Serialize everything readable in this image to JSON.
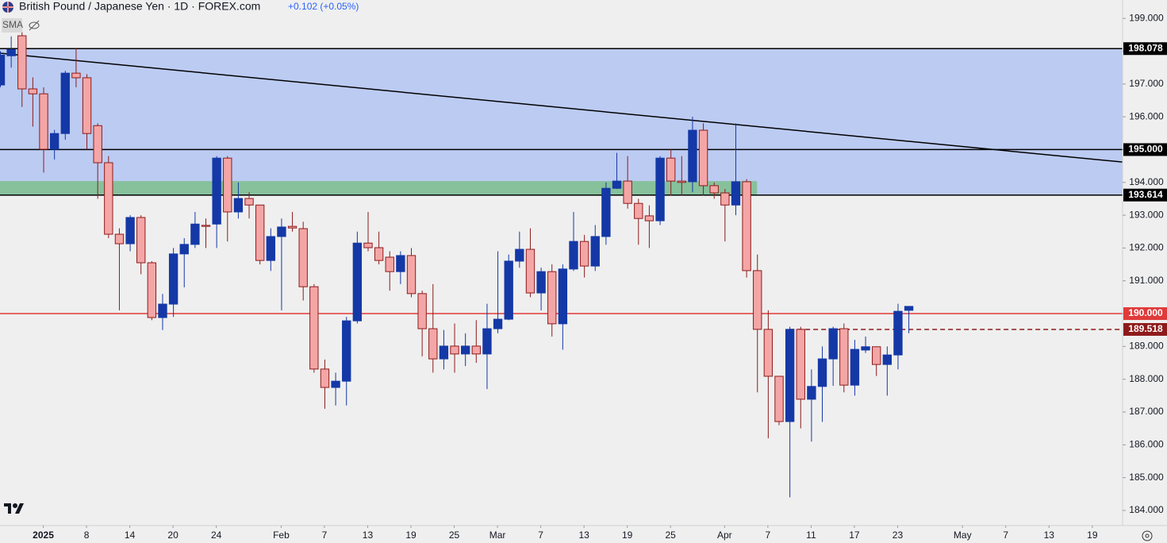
{
  "chart_data": {
    "type": "candlestick",
    "title": "British Pound / Japanese Yen · 1D · FOREX.com",
    "change": "+0.102 (+0.05%)",
    "indicator": "SMA",
    "up_color": "#1438a6",
    "down_color": "#f4a6a6",
    "down_edge": "#8e1b1b",
    "ylim": [
      183.54,
      199.56
    ],
    "xlim": [
      0,
      103.8
    ],
    "yticks": [
      {
        "value": 184,
        "label": "184.000"
      },
      {
        "value": 185,
        "label": "185.000"
      },
      {
        "value": 186,
        "label": "186.000"
      },
      {
        "value": 187,
        "label": "187.000"
      },
      {
        "value": 188,
        "label": "188.000"
      },
      {
        "value": 189,
        "label": "189.000"
      },
      {
        "value": 190,
        "label": "190.000"
      },
      {
        "value": 191,
        "label": "191.000"
      },
      {
        "value": 192,
        "label": "192.000"
      },
      {
        "value": 193,
        "label": "193.000"
      },
      {
        "value": 194,
        "label": "194.000"
      },
      {
        "value": 195,
        "label": "195.000"
      },
      {
        "value": 196,
        "label": "196.000"
      },
      {
        "value": 197,
        "label": "197.000"
      },
      {
        "value": 198,
        "label": "198.000"
      },
      {
        "value": 199,
        "label": "199.000"
      }
    ],
    "xticks": [
      {
        "value": 4,
        "label": "2025"
      },
      {
        "value": 8,
        "label": "8"
      },
      {
        "value": 12,
        "label": "14"
      },
      {
        "value": 16,
        "label": "20"
      },
      {
        "value": 20,
        "label": "24"
      },
      {
        "value": 26,
        "label": "Feb"
      },
      {
        "value": 30,
        "label": "7"
      },
      {
        "value": 34,
        "label": "13"
      },
      {
        "value": 38,
        "label": "19"
      },
      {
        "value": 42,
        "label": "25"
      },
      {
        "value": 46,
        "label": "Mar"
      },
      {
        "value": 50,
        "label": "7"
      },
      {
        "value": 54,
        "label": "13"
      },
      {
        "value": 58,
        "label": "19"
      },
      {
        "value": 62,
        "label": "25"
      },
      {
        "value": 67,
        "label": "Apr"
      },
      {
        "value": 71,
        "label": "7"
      },
      {
        "value": 75,
        "label": "11"
      },
      {
        "value": 79,
        "label": "17"
      },
      {
        "value": 83,
        "label": "23"
      },
      {
        "value": 89,
        "label": "May"
      },
      {
        "value": 93,
        "label": "7"
      },
      {
        "value": 97,
        "label": "13"
      },
      {
        "value": 101,
        "label": "19"
      }
    ],
    "zones": [
      {
        "from": 193.614,
        "to": 198.078,
        "x": [
          0,
          103.8
        ],
        "color": "#bccbf2"
      },
      {
        "from": 193.614,
        "to": 194.04,
        "x": [
          0,
          70
        ],
        "color": "#86c19c"
      }
    ],
    "levels": [
      {
        "value": 198.078,
        "label": "198.078",
        "color": "#000000",
        "style": "solid",
        "x": [
          0,
          103.8
        ]
      },
      {
        "value": 195,
        "label": "195.000",
        "color": "#000000",
        "style": "solid",
        "x": [
          0,
          103.8
        ]
      },
      {
        "value": 193.614,
        "label": "193.614",
        "color": "#000000",
        "style": "solid",
        "x": [
          0,
          103.8
        ]
      },
      {
        "value": 190,
        "label": "190.000",
        "color": "#e03a3a",
        "style": "solid",
        "x": [
          0,
          103.8
        ]
      },
      {
        "value": 189.518,
        "label": "189.518",
        "color": "#8e1b1b",
        "style": "dashed",
        "x": [
          73,
          103.8
        ]
      }
    ],
    "trendline": {
      "x": [
        0,
        103.8
      ],
      "y": [
        197.94,
        194.62
      ],
      "color": "#000000"
    },
    "ohlc": [
      [
        196.97,
        198.0,
        196.9,
        197.88
      ],
      [
        197.86,
        198.45,
        197.5,
        198.05
      ],
      [
        198.47,
        198.6,
        196.3,
        196.85
      ],
      [
        196.85,
        197.2,
        195.7,
        196.7
      ],
      [
        196.7,
        196.9,
        194.3,
        195.01
      ],
      [
        195.01,
        195.6,
        194.7,
        195.49
      ],
      [
        195.49,
        197.4,
        195.3,
        197.33
      ],
      [
        197.33,
        198.1,
        196.9,
        197.19
      ],
      [
        197.19,
        197.3,
        195.0,
        195.49
      ],
      [
        195.73,
        195.8,
        193.5,
        194.6
      ],
      [
        194.6,
        194.8,
        192.3,
        192.42
      ],
      [
        192.42,
        192.6,
        190.1,
        192.13
      ],
      [
        192.13,
        193.0,
        191.9,
        192.93
      ],
      [
        192.93,
        193.0,
        191.2,
        191.55
      ],
      [
        191.55,
        191.6,
        189.8,
        189.88
      ],
      [
        189.88,
        190.6,
        189.5,
        190.29
      ],
      [
        190.29,
        192.0,
        189.9,
        191.82
      ],
      [
        191.82,
        192.3,
        190.8,
        192.11
      ],
      [
        192.11,
        193.1,
        192.0,
        192.73
      ],
      [
        192.69,
        192.9,
        192.0,
        192.66
      ],
      [
        192.73,
        194.8,
        192.0,
        194.74
      ],
      [
        194.74,
        194.8,
        192.2,
        193.1
      ],
      [
        193.1,
        194.0,
        192.9,
        193.51
      ],
      [
        193.51,
        193.7,
        192.9,
        193.31
      ],
      [
        193.31,
        193.3,
        191.5,
        191.62
      ],
      [
        191.62,
        192.6,
        191.3,
        192.35
      ],
      [
        192.35,
        192.9,
        190.1,
        192.64
      ],
      [
        192.66,
        193.1,
        192.5,
        192.61
      ],
      [
        192.59,
        192.8,
        190.4,
        190.82
      ],
      [
        190.82,
        190.9,
        188.2,
        188.31
      ],
      [
        188.31,
        188.6,
        187.1,
        187.75
      ],
      [
        187.75,
        188.2,
        187.2,
        187.94
      ],
      [
        187.94,
        189.9,
        187.2,
        189.78
      ],
      [
        189.78,
        192.5,
        189.7,
        192.15
      ],
      [
        192.15,
        193.1,
        191.9,
        192.01
      ],
      [
        192.01,
        192.5,
        191.5,
        191.62
      ],
      [
        191.72,
        191.9,
        190.7,
        191.28
      ],
      [
        191.28,
        191.9,
        190.9,
        191.77
      ],
      [
        191.77,
        192.0,
        190.5,
        190.61
      ],
      [
        190.61,
        190.7,
        188.7,
        189.54
      ],
      [
        189.54,
        190.9,
        188.2,
        188.62
      ],
      [
        188.62,
        189.5,
        188.3,
        189.01
      ],
      [
        189.01,
        189.7,
        188.2,
        188.77
      ],
      [
        188.77,
        189.4,
        188.4,
        189.01
      ],
      [
        189.01,
        189.8,
        188.5,
        188.77
      ],
      [
        188.77,
        190.3,
        187.7,
        189.54
      ],
      [
        189.54,
        191.9,
        189.4,
        189.83
      ],
      [
        189.83,
        191.8,
        189.8,
        191.6
      ],
      [
        191.6,
        192.5,
        191.4,
        191.96
      ],
      [
        191.96,
        192.6,
        190.5,
        190.63
      ],
      [
        190.63,
        191.4,
        190.1,
        191.28
      ],
      [
        191.28,
        191.5,
        189.3,
        189.69
      ],
      [
        189.69,
        191.5,
        188.9,
        191.36
      ],
      [
        191.36,
        193.1,
        191.3,
        192.2
      ],
      [
        192.2,
        192.4,
        191.1,
        191.45
      ],
      [
        191.45,
        192.7,
        191.3,
        192.35
      ],
      [
        192.35,
        194.0,
        192.1,
        193.82
      ],
      [
        193.82,
        194.9,
        193.8,
        194.04
      ],
      [
        194.04,
        194.8,
        193.2,
        193.36
      ],
      [
        193.36,
        193.5,
        192.1,
        192.9
      ],
      [
        192.98,
        193.3,
        192.0,
        192.83
      ],
      [
        192.83,
        194.8,
        192.7,
        194.74
      ],
      [
        194.74,
        195.0,
        193.6,
        194.04
      ],
      [
        194.04,
        194.8,
        193.6,
        194.0
      ],
      [
        194.02,
        196.0,
        193.7,
        195.59
      ],
      [
        195.59,
        195.8,
        193.6,
        193.9
      ],
      [
        193.9,
        194.0,
        193.5,
        193.68
      ],
      [
        193.68,
        193.8,
        192.2,
        193.31
      ],
      [
        193.31,
        195.8,
        193.0,
        194.02
      ],
      [
        194.02,
        194.1,
        191.1,
        191.31
      ],
      [
        191.31,
        191.8,
        187.6,
        189.52
      ],
      [
        189.52,
        190.1,
        186.2,
        188.09
      ],
      [
        188.09,
        188.1,
        186.6,
        186.71
      ],
      [
        186.71,
        189.6,
        184.4,
        189.52
      ],
      [
        189.52,
        189.6,
        186.5,
        187.39
      ],
      [
        187.39,
        188.3,
        186.1,
        187.78
      ],
      [
        187.78,
        189.0,
        186.7,
        188.62
      ],
      [
        188.62,
        189.6,
        187.8,
        189.54
      ],
      [
        189.54,
        189.7,
        187.6,
        187.82
      ],
      [
        187.82,
        189.2,
        187.5,
        188.91
      ],
      [
        188.89,
        189.3,
        188.8,
        188.99
      ],
      [
        188.99,
        189.0,
        188.1,
        188.45
      ],
      [
        188.45,
        189.0,
        187.5,
        188.74
      ],
      [
        188.74,
        190.3,
        188.3,
        190.07
      ],
      [
        190.1,
        190.22,
        189.4,
        190.22
      ]
    ]
  }
}
